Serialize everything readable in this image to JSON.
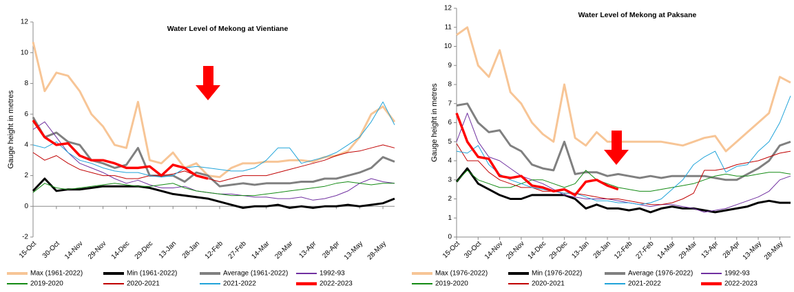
{
  "chart_data": [
    {
      "type": "line",
      "title": "Water Level of Mekong at Vientiane",
      "y_label": "Gauge height in metres",
      "categories": [
        "15-Oct",
        null,
        "30-Oct",
        null,
        "14-Nov",
        null,
        "29-Nov",
        null,
        "14-Dec",
        null,
        "29-Dec",
        null,
        "13-Jan",
        null,
        "28-Jan",
        null,
        "12-Feb",
        null,
        "27-Feb",
        null,
        "14-Mar",
        null,
        "29-Mar",
        null,
        "13-Apr",
        null,
        "28-Apr",
        null,
        "13-May",
        null,
        "28-May",
        null
      ],
      "ylim": [
        -2,
        12
      ],
      "yticks": [
        -2,
        0,
        2,
        4,
        6,
        8,
        10,
        12
      ],
      "grid": false,
      "series": [
        {
          "name": "Max (1961-2022)",
          "color": "#f7c596",
          "values": [
            10.7,
            7.5,
            8.7,
            8.5,
            7.5,
            6.0,
            5.2,
            4.0,
            3.8,
            6.8,
            3.0,
            2.8,
            3.5,
            2.5,
            2.8,
            2.0,
            1.9,
            2.5,
            2.8,
            2.8,
            2.9,
            2.9,
            3.0,
            3.0,
            2.9,
            3.2,
            3.3,
            3.6,
            4.5,
            6.0,
            6.5,
            5.5
          ]
        },
        {
          "name": "Min (1961-2022)",
          "color": "#000000",
          "values": [
            1.0,
            1.8,
            1.0,
            1.1,
            1.1,
            1.2,
            1.3,
            1.3,
            1.3,
            1.3,
            1.2,
            1.0,
            0.8,
            0.7,
            0.6,
            0.5,
            0.3,
            0.1,
            -0.1,
            0.0,
            0.0,
            0.1,
            -0.1,
            0.0,
            -0.1,
            0.0,
            0.0,
            0.1,
            0.0,
            0.1,
            0.2,
            0.5
          ]
        },
        {
          "name": "Average (1961-2022)",
          "color": "#808080",
          "values": [
            5.8,
            4.5,
            4.8,
            4.2,
            4.0,
            3.0,
            2.8,
            2.5,
            2.7,
            3.8,
            2.0,
            2.0,
            2.0,
            1.6,
            2.2,
            2.0,
            1.3,
            1.4,
            1.5,
            1.4,
            1.5,
            1.5,
            1.5,
            1.6,
            1.6,
            1.8,
            1.8,
            2.0,
            2.2,
            2.5,
            3.2,
            2.9
          ]
        },
        {
          "name": "1992-93",
          "color": "#7030a0",
          "values": [
            5.0,
            5.5,
            4.5,
            3.5,
            2.8,
            2.5,
            2.2,
            1.8,
            1.5,
            1.7,
            1.4,
            1.2,
            1.2,
            1.3,
            1.0,
            0.9,
            0.8,
            0.8,
            0.7,
            0.6,
            0.6,
            0.5,
            0.5,
            0.6,
            0.4,
            0.5,
            0.7,
            1.0,
            1.5,
            1.8,
            1.6,
            1.5
          ]
        },
        {
          "name": "2019-2020",
          "color": "#138a13",
          "values": [
            0.9,
            1.5,
            1.2,
            1.1,
            1.2,
            1.3,
            1.4,
            1.5,
            1.4,
            1.3,
            1.3,
            1.4,
            1.5,
            1.2,
            1.0,
            0.9,
            0.8,
            0.7,
            0.7,
            0.7,
            0.8,
            0.9,
            1.0,
            1.1,
            1.2,
            1.3,
            1.5,
            1.6,
            1.5,
            1.4,
            1.5,
            1.5
          ]
        },
        {
          "name": "2020-2021",
          "color": "#c00000",
          "values": [
            3.5,
            3.0,
            3.3,
            2.8,
            2.4,
            2.2,
            2.0,
            2.0,
            1.8,
            1.8,
            2.0,
            2.0,
            2.1,
            2.3,
            2.0,
            1.8,
            1.6,
            1.8,
            2.0,
            2.0,
            2.0,
            2.2,
            2.4,
            2.6,
            2.8,
            3.0,
            3.3,
            3.5,
            3.6,
            3.8,
            4.0,
            3.8
          ]
        },
        {
          "name": "2021-2022",
          "color": "#1fa3d9",
          "values": [
            4.0,
            3.8,
            4.2,
            3.5,
            3.0,
            2.8,
            2.5,
            2.3,
            2.2,
            2.2,
            2.0,
            1.9,
            2.0,
            2.5,
            2.6,
            2.5,
            2.4,
            2.3,
            2.3,
            2.5,
            3.0,
            3.8,
            3.8,
            2.8,
            3.0,
            3.2,
            3.5,
            4.0,
            4.5,
            5.5,
            6.8,
            5.3
          ]
        },
        {
          "name": "2022-2023",
          "color": "#ff0000",
          "values": [
            5.6,
            4.5,
            4.0,
            4.1,
            3.3,
            3.0,
            3.0,
            2.8,
            2.5,
            2.5,
            2.6,
            2.0,
            2.7,
            2.5,
            2.0,
            1.8,
            null,
            null,
            null,
            null,
            null,
            null,
            null,
            null,
            null,
            null,
            null,
            null,
            null,
            null,
            null,
            null
          ]
        }
      ]
    },
    {
      "type": "line",
      "title": "Water Level of Mekong at Paksane",
      "y_label": "Gauge height in metres",
      "categories": [
        "15-Oct",
        null,
        "30-Oct",
        null,
        "14-Nov",
        null,
        "29-Nov",
        null,
        "14-Dec",
        null,
        "29-Dec",
        null,
        "13-Jan",
        null,
        "28-Jan",
        null,
        "12-Feb",
        null,
        "27-Feb",
        null,
        "14-Mar",
        null,
        "29-Mar",
        null,
        "13-Apr",
        null,
        "28-Apr",
        null,
        "13-May",
        null,
        "28-May",
        null
      ],
      "ylim": [
        0,
        12
      ],
      "yticks": [
        0,
        1,
        2,
        3,
        4,
        5,
        6,
        7,
        8,
        9,
        10,
        11,
        12
      ],
      "grid": false,
      "series": [
        {
          "name": "Max (1976-2022)",
          "color": "#f7c596",
          "values": [
            10.6,
            11.0,
            9.0,
            8.4,
            9.8,
            7.6,
            7.0,
            6.0,
            5.4,
            5.0,
            8.0,
            5.2,
            4.8,
            5.5,
            5.0,
            5.0,
            5.0,
            5.0,
            5.0,
            5.0,
            4.9,
            4.8,
            5.0,
            5.2,
            5.3,
            4.5,
            5.0,
            5.5,
            6.0,
            6.5,
            8.4,
            8.1
          ]
        },
        {
          "name": "Min (1976-2022)",
          "color": "#000000",
          "values": [
            2.9,
            3.6,
            2.8,
            2.5,
            2.2,
            2.0,
            2.0,
            2.2,
            2.2,
            2.2,
            2.2,
            2.0,
            1.5,
            1.7,
            1.5,
            1.5,
            1.4,
            1.5,
            1.3,
            1.5,
            1.6,
            1.5,
            1.5,
            1.4,
            1.3,
            1.4,
            1.5,
            1.6,
            1.8,
            1.9,
            1.8,
            1.8
          ]
        },
        {
          "name": "Average (1976-2022)",
          "color": "#808080",
          "values": [
            6.9,
            7.0,
            6.0,
            5.5,
            5.6,
            4.8,
            4.5,
            3.8,
            3.6,
            3.5,
            5.0,
            3.3,
            3.4,
            3.4,
            3.2,
            3.3,
            3.2,
            3.1,
            3.2,
            3.1,
            3.2,
            3.2,
            3.2,
            3.2,
            3.1,
            3.0,
            3.0,
            3.3,
            3.6,
            4.0,
            4.8,
            5.0
          ]
        },
        {
          "name": "1992-93",
          "color": "#7030a0",
          "values": [
            5.0,
            6.5,
            5.0,
            4.2,
            4.0,
            3.6,
            3.2,
            3.0,
            2.8,
            2.5,
            2.2,
            2.1,
            2.0,
            2.0,
            2.0,
            1.9,
            1.8,
            1.7,
            1.6,
            1.7,
            1.7,
            1.6,
            1.5,
            1.3,
            1.4,
            1.5,
            1.7,
            1.9,
            2.1,
            2.4,
            3.0,
            3.2
          ]
        },
        {
          "name": "2019-2020",
          "color": "#138a13",
          "values": [
            2.9,
            3.5,
            3.0,
            2.8,
            2.6,
            2.6,
            2.8,
            3.0,
            3.0,
            2.8,
            2.6,
            2.8,
            3.5,
            3.0,
            2.8,
            2.6,
            2.5,
            2.4,
            2.4,
            2.5,
            2.6,
            2.7,
            2.8,
            3.0,
            3.2,
            3.3,
            3.2,
            3.2,
            3.3,
            3.4,
            3.4,
            3.3
          ]
        },
        {
          "name": "2020-2021",
          "color": "#c00000",
          "values": [
            4.9,
            4.0,
            4.0,
            3.4,
            3.0,
            2.8,
            2.6,
            2.6,
            2.4,
            2.4,
            2.3,
            2.3,
            2.2,
            2.1,
            2.0,
            2.0,
            1.9,
            1.8,
            1.7,
            1.7,
            1.8,
            2.0,
            2.3,
            3.5,
            3.5,
            3.6,
            3.8,
            3.9,
            4.0,
            4.2,
            4.4,
            4.5
          ]
        },
        {
          "name": "2021-2022",
          "color": "#1fa3d9",
          "values": [
            4.5,
            4.4,
            4.8,
            3.8,
            3.3,
            3.0,
            2.8,
            2.6,
            2.5,
            2.4,
            2.3,
            2.3,
            2.1,
            1.9,
            1.9,
            1.8,
            1.8,
            1.7,
            1.8,
            2.0,
            2.5,
            3.0,
            3.8,
            4.2,
            4.5,
            3.4,
            3.7,
            3.8,
            4.5,
            5.0,
            6.0,
            7.4
          ]
        },
        {
          "name": "2022-2023",
          "color": "#ff0000",
          "values": [
            6.5,
            5.0,
            4.2,
            4.1,
            3.2,
            3.1,
            3.2,
            2.7,
            2.6,
            2.4,
            2.5,
            2.2,
            2.9,
            3.0,
            2.7,
            2.5,
            null,
            null,
            null,
            null,
            null,
            null,
            null,
            null,
            null,
            null,
            null,
            null,
            null,
            null,
            null,
            null
          ]
        }
      ]
    }
  ]
}
